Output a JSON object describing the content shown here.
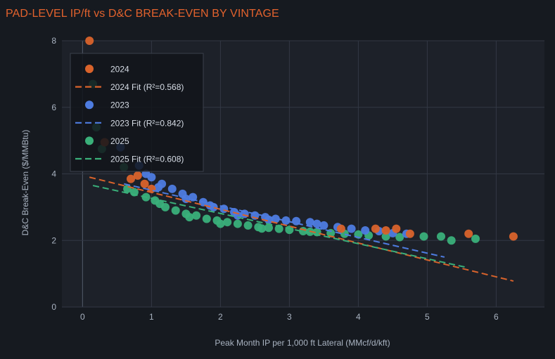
{
  "chart_data": {
    "type": "scatter",
    "title": "PAD-LEVEL IP/ft vs D&C BREAK-EVEN BY VINTAGE",
    "xlabel": "Peak Month IP per 1,000 ft Lateral (MMcf/d/kft)",
    "ylabel": "D&C Break-Even ($/MMBtu)",
    "xlim": [
      -0.3,
      6.7
    ],
    "ylim": [
      0,
      8
    ],
    "xticks": [
      0,
      1,
      2,
      3,
      4,
      5,
      6
    ],
    "yticks": [
      0,
      2,
      4,
      6,
      8
    ],
    "series": [
      {
        "name": "2024",
        "kind": "scatter",
        "color": "#d9632b",
        "points": [
          [
            0.1,
            8.0
          ],
          [
            0.32,
            4.95
          ],
          [
            0.7,
            3.85
          ],
          [
            0.8,
            3.95
          ],
          [
            0.9,
            3.7
          ],
          [
            1.0,
            3.55
          ],
          [
            3.75,
            2.35
          ],
          [
            4.25,
            2.35
          ],
          [
            4.4,
            2.3
          ],
          [
            4.55,
            2.35
          ],
          [
            4.75,
            2.2
          ],
          [
            5.6,
            2.2
          ],
          [
            6.25,
            2.12
          ]
        ]
      },
      {
        "name": "2024 Fit (R²=0.568)",
        "kind": "fit",
        "color": "#d9632b",
        "x": [
          0.1,
          6.25
        ],
        "y": [
          3.9,
          0.78
        ]
      },
      {
        "name": "2023",
        "kind": "scatter",
        "color": "#4e7ce0",
        "points": [
          [
            0.55,
            4.8
          ],
          [
            0.82,
            4.25
          ],
          [
            0.92,
            4.0
          ],
          [
            1.0,
            3.9
          ],
          [
            1.15,
            3.7
          ],
          [
            1.3,
            3.55
          ],
          [
            1.45,
            3.4
          ],
          [
            1.6,
            3.3
          ],
          [
            1.75,
            3.15
          ],
          [
            1.9,
            3.0
          ],
          [
            2.05,
            2.95
          ],
          [
            2.2,
            2.85
          ],
          [
            2.35,
            2.8
          ],
          [
            2.5,
            2.75
          ],
          [
            2.65,
            2.7
          ],
          [
            2.8,
            2.65
          ],
          [
            2.95,
            2.6
          ],
          [
            3.1,
            2.58
          ],
          [
            3.3,
            2.55
          ],
          [
            3.5,
            2.45
          ],
          [
            3.7,
            2.4
          ],
          [
            3.9,
            2.35
          ],
          [
            4.1,
            2.3
          ],
          [
            4.3,
            2.28
          ],
          [
            4.5,
            2.22
          ],
          [
            4.7,
            2.2
          ],
          [
            1.1,
            3.6
          ],
          [
            1.5,
            3.25
          ],
          [
            1.85,
            3.05
          ],
          [
            2.25,
            2.75
          ],
          [
            2.7,
            2.62
          ],
          [
            3.4,
            2.5
          ]
        ]
      },
      {
        "name": "2023 Fit (R²=0.842)",
        "kind": "fit",
        "color": "#4e7ce0",
        "x": [
          0.6,
          5.25
        ],
        "y": [
          3.7,
          1.5
        ]
      },
      {
        "name": "2025",
        "kind": "scatter",
        "color": "#3ab07a",
        "points": [
          [
            0.15,
            6.7
          ],
          [
            0.2,
            5.4
          ],
          [
            0.28,
            4.75
          ],
          [
            0.6,
            4.2
          ],
          [
            0.65,
            3.55
          ],
          [
            0.75,
            3.45
          ],
          [
            0.92,
            3.3
          ],
          [
            1.05,
            3.2
          ],
          [
            1.2,
            3.0
          ],
          [
            1.35,
            2.9
          ],
          [
            1.5,
            2.8
          ],
          [
            1.65,
            2.75
          ],
          [
            1.8,
            2.65
          ],
          [
            1.95,
            2.6
          ],
          [
            2.1,
            2.55
          ],
          [
            2.25,
            2.5
          ],
          [
            2.4,
            2.45
          ],
          [
            2.55,
            2.4
          ],
          [
            2.7,
            2.38
          ],
          [
            2.85,
            2.35
          ],
          [
            3.0,
            2.32
          ],
          [
            3.2,
            2.28
          ],
          [
            3.4,
            2.25
          ],
          [
            3.6,
            2.22
          ],
          [
            3.8,
            2.2
          ],
          [
            4.0,
            2.18
          ],
          [
            4.15,
            2.15
          ],
          [
            4.4,
            2.12
          ],
          [
            4.6,
            2.1
          ],
          [
            4.95,
            2.12
          ],
          [
            5.2,
            2.12
          ],
          [
            5.35,
            2.0
          ],
          [
            5.7,
            2.05
          ],
          [
            1.12,
            3.1
          ],
          [
            1.55,
            2.7
          ],
          [
            2.0,
            2.5
          ],
          [
            2.6,
            2.36
          ],
          [
            3.3,
            2.26
          ]
        ]
      },
      {
        "name": "2025 Fit (R²=0.608)",
        "kind": "fit",
        "color": "#3ab07a",
        "x": [
          0.15,
          5.55
        ],
        "y": [
          3.65,
          1.2
        ]
      }
    ],
    "legend_position": "top-left"
  }
}
